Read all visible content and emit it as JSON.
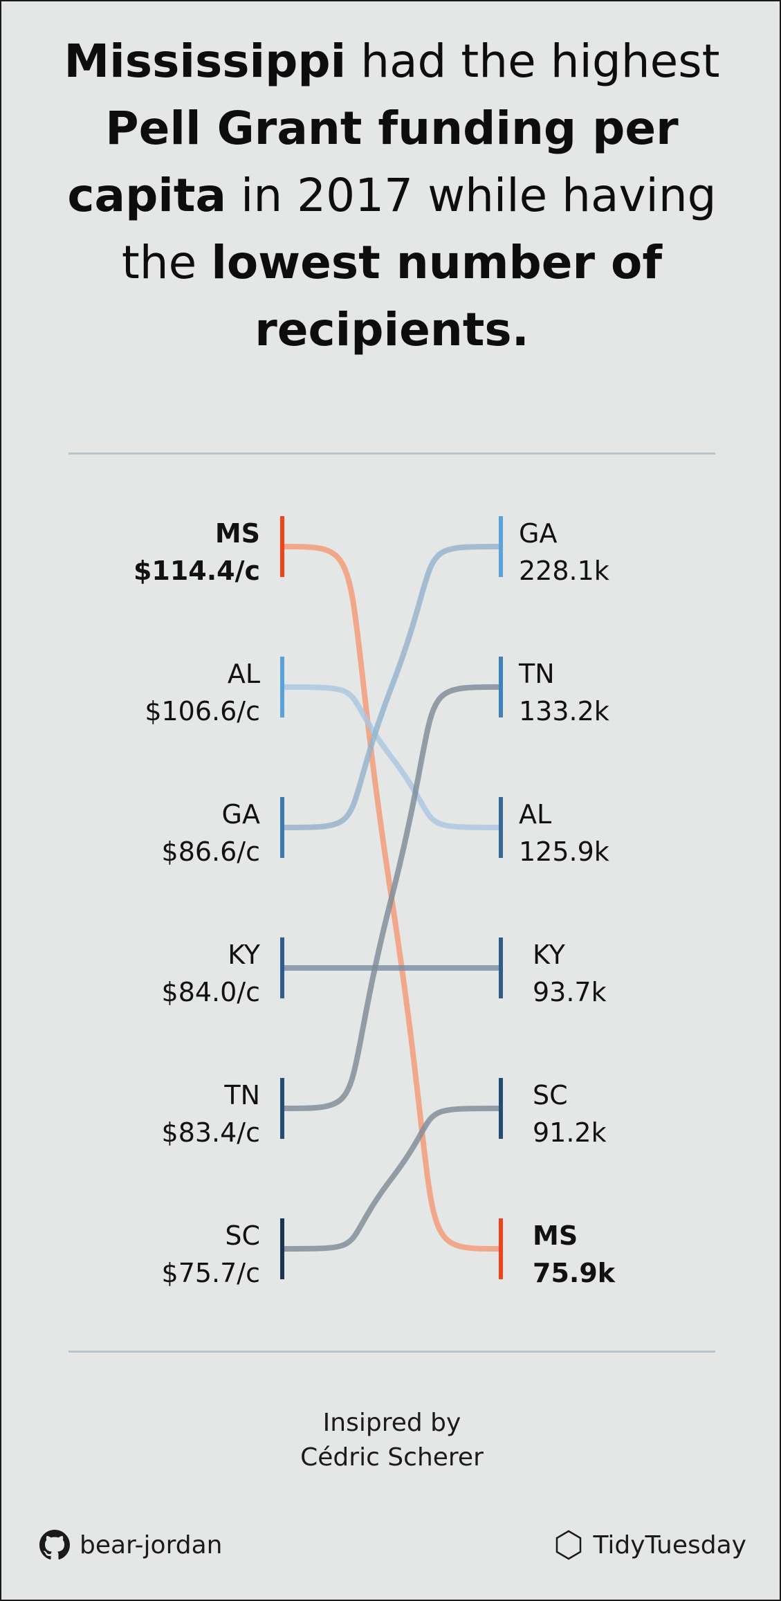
{
  "title": {
    "parts": [
      {
        "text": "Mississippi",
        "bold": true
      },
      {
        "text": " had the highest ",
        "bold": false
      },
      {
        "text": "Pell Grant funding per capita",
        "bold": true
      },
      {
        "text": " in 2017 while having the ",
        "bold": false
      },
      {
        "text": "lowest number of recipients.",
        "bold": true
      }
    ]
  },
  "chart_data": {
    "type": "slope",
    "left_measure": "funding per capita",
    "right_measure": "recipients",
    "left": [
      {
        "state": "MS",
        "label": "$114.4/c",
        "value": 114.4,
        "color": "#f0431c",
        "highlight": true
      },
      {
        "state": "AL",
        "label": "$106.6/c",
        "value": 106.6,
        "color": "#5aa2dc",
        "highlight": false
      },
      {
        "state": "GA",
        "label": "$86.6/c",
        "value": 86.6,
        "color": "#3c79ae",
        "highlight": false
      },
      {
        "state": "KY",
        "label": "$84.0/c",
        "value": 84.0,
        "color": "#2d5d8c",
        "highlight": false
      },
      {
        "state": "TN",
        "label": "$83.4/c",
        "value": 83.4,
        "color": "#244d75",
        "highlight": false
      },
      {
        "state": "SC",
        "label": "$75.7/c",
        "value": 75.7,
        "color": "#1a3550",
        "highlight": false
      }
    ],
    "right": [
      {
        "state": "GA",
        "label": "228.1k",
        "value": 228.1,
        "color": "#5aa2dc",
        "highlight": false
      },
      {
        "state": "TN",
        "label": "133.2k",
        "value": 133.2,
        "color": "#3e82bd",
        "highlight": false
      },
      {
        "state": "AL",
        "label": "125.9k",
        "value": 125.9,
        "color": "#34699c",
        "highlight": false
      },
      {
        "state": "KY",
        "label": "93.7k",
        "value": 93.7,
        "color": "#2d5d8c",
        "highlight": false
      },
      {
        "state": "SC",
        "label": "91.2k",
        "value": 91.2,
        "color": "#244d75",
        "highlight": false
      },
      {
        "state": "MS",
        "label": "75.9k",
        "value": 75.9,
        "color": "#f0431c",
        "highlight": true
      }
    ],
    "link_colors": {
      "MS": "#f2a07e",
      "AL": "#a9c7e0",
      "GA": "#94b2cc",
      "KY": "#7c8fa3",
      "TN": "#7f8b99",
      "SC": "#7f8b99"
    }
  },
  "credit": {
    "line1": "Insipred by",
    "line2": "Cédric Scherer"
  },
  "footer": {
    "github_icon": "github-icon",
    "github_handle": "bear-jordan",
    "hexagon_icon": "hexagon-icon",
    "project": "TidyTuesday"
  }
}
